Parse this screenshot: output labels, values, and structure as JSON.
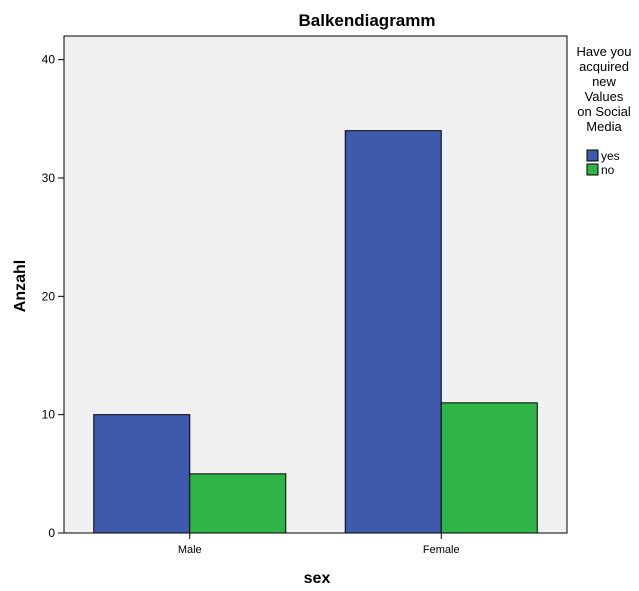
{
  "chart_data": {
    "type": "bar",
    "title": "Balkendiagramm",
    "xlabel": "sex",
    "ylabel": "Anzahl",
    "categories": [
      "Male",
      "Female"
    ],
    "series": [
      {
        "name": "yes",
        "values": [
          10,
          34
        ],
        "color": "#3f59ad"
      },
      {
        "name": "no",
        "values": [
          5,
          11
        ],
        "color": "#2fb547"
      }
    ],
    "ylim": [
      0,
      42
    ],
    "yticks": [
      0,
      10,
      20,
      30,
      40
    ],
    "ytick_labels": [
      "0",
      "10",
      "20",
      "30",
      "40"
    ],
    "grid": false,
    "plot_background": "#f0f0f0",
    "legend": {
      "title_lines": [
        "Have you",
        "acquired",
        "new",
        "Values",
        "on Social",
        "Media"
      ],
      "placement": "right"
    }
  }
}
